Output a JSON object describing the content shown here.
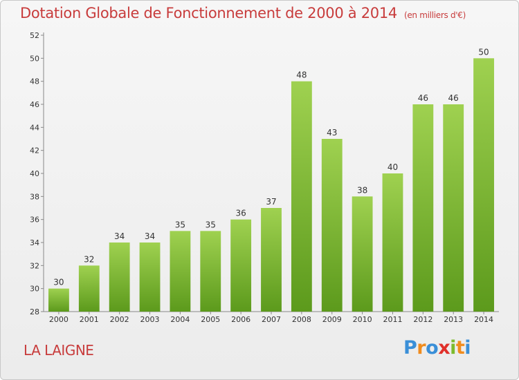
{
  "chart_data": {
    "type": "bar",
    "title": "Dotation Globale de Fonctionnement de 2000 à 2014",
    "unit": "(en milliers d'€)",
    "categories": [
      "2000",
      "2001",
      "2002",
      "2003",
      "2004",
      "2005",
      "2006",
      "2007",
      "2008",
      "2009",
      "2010",
      "2011",
      "2012",
      "2013",
      "2014"
    ],
    "values": [
      30,
      32,
      34,
      34,
      35,
      35,
      36,
      37,
      48,
      43,
      38,
      40,
      46,
      46,
      50
    ],
    "ylim": [
      28,
      52
    ],
    "yticks": [
      28,
      30,
      32,
      34,
      36,
      38,
      40,
      42,
      44,
      46,
      48,
      50,
      52
    ],
    "grid": false,
    "bar_color": "#7cbb2d"
  },
  "commune": "LA LAIGNE",
  "logo": {
    "letters": [
      "P",
      "r",
      "o",
      "x",
      "i",
      "t",
      "i"
    ],
    "colors": [
      "#3a8fd8",
      "#f08c1e",
      "#3a8fd8",
      "#e0302a",
      "#7cbb2d",
      "#f08c1e",
      "#3a8fd8"
    ]
  }
}
